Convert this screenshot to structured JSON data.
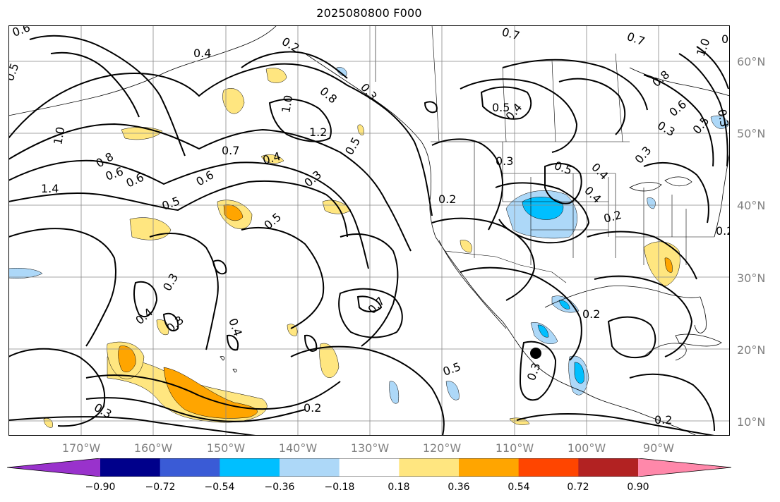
{
  "title": "2025080800 F000",
  "map": {
    "lat_labels": [
      "60°N",
      "50°N",
      "40°N",
      "30°N",
      "20°N",
      "10°N"
    ],
    "lon_labels": [
      "170°W",
      "160°W",
      "150°W",
      "140°W",
      "130°W",
      "120°W",
      "110°W",
      "100°W",
      "90°W"
    ],
    "contour_labels": [
      "0.6",
      "0.2",
      "0.4",
      "0.7",
      "1.0",
      "0.5",
      "0.8",
      "0.3",
      "1.2",
      "1.4",
      "0.6",
      "0.4",
      "0.7",
      "0.5",
      "0.6",
      "0.3",
      "0.5",
      "0.5",
      "0.3",
      "0.4",
      "0.3",
      "0.4",
      "0.3",
      "0.7",
      "0.2",
      "0.5",
      "0.3",
      "0.2",
      "0.2",
      "0.5",
      "0.4",
      "0.2",
      "0.3",
      "0.5",
      "0.4",
      "0.8",
      "0.6",
      "0.3",
      "0.3",
      "0.2",
      "0.2",
      "1.0",
      "0.5",
      "0.3",
      "0.2",
      "0.6",
      "0.8",
      "1.0",
      "0.4",
      "0.7"
    ],
    "marker": "filled circle"
  },
  "colorbar": {
    "colors": [
      "#9932cc",
      "#00008b",
      "#3a5bd6",
      "#00bfff",
      "#add8f8",
      "#ffffff",
      "#ffe680",
      "#ffa500",
      "#ff4500",
      "#b22222",
      "#ff88aa"
    ],
    "ticks": [
      "−0.90",
      "−0.72",
      "−0.54",
      "−0.36",
      "−0.18",
      "0.18",
      "0.36",
      "0.54",
      "0.72",
      "0.90"
    ]
  }
}
